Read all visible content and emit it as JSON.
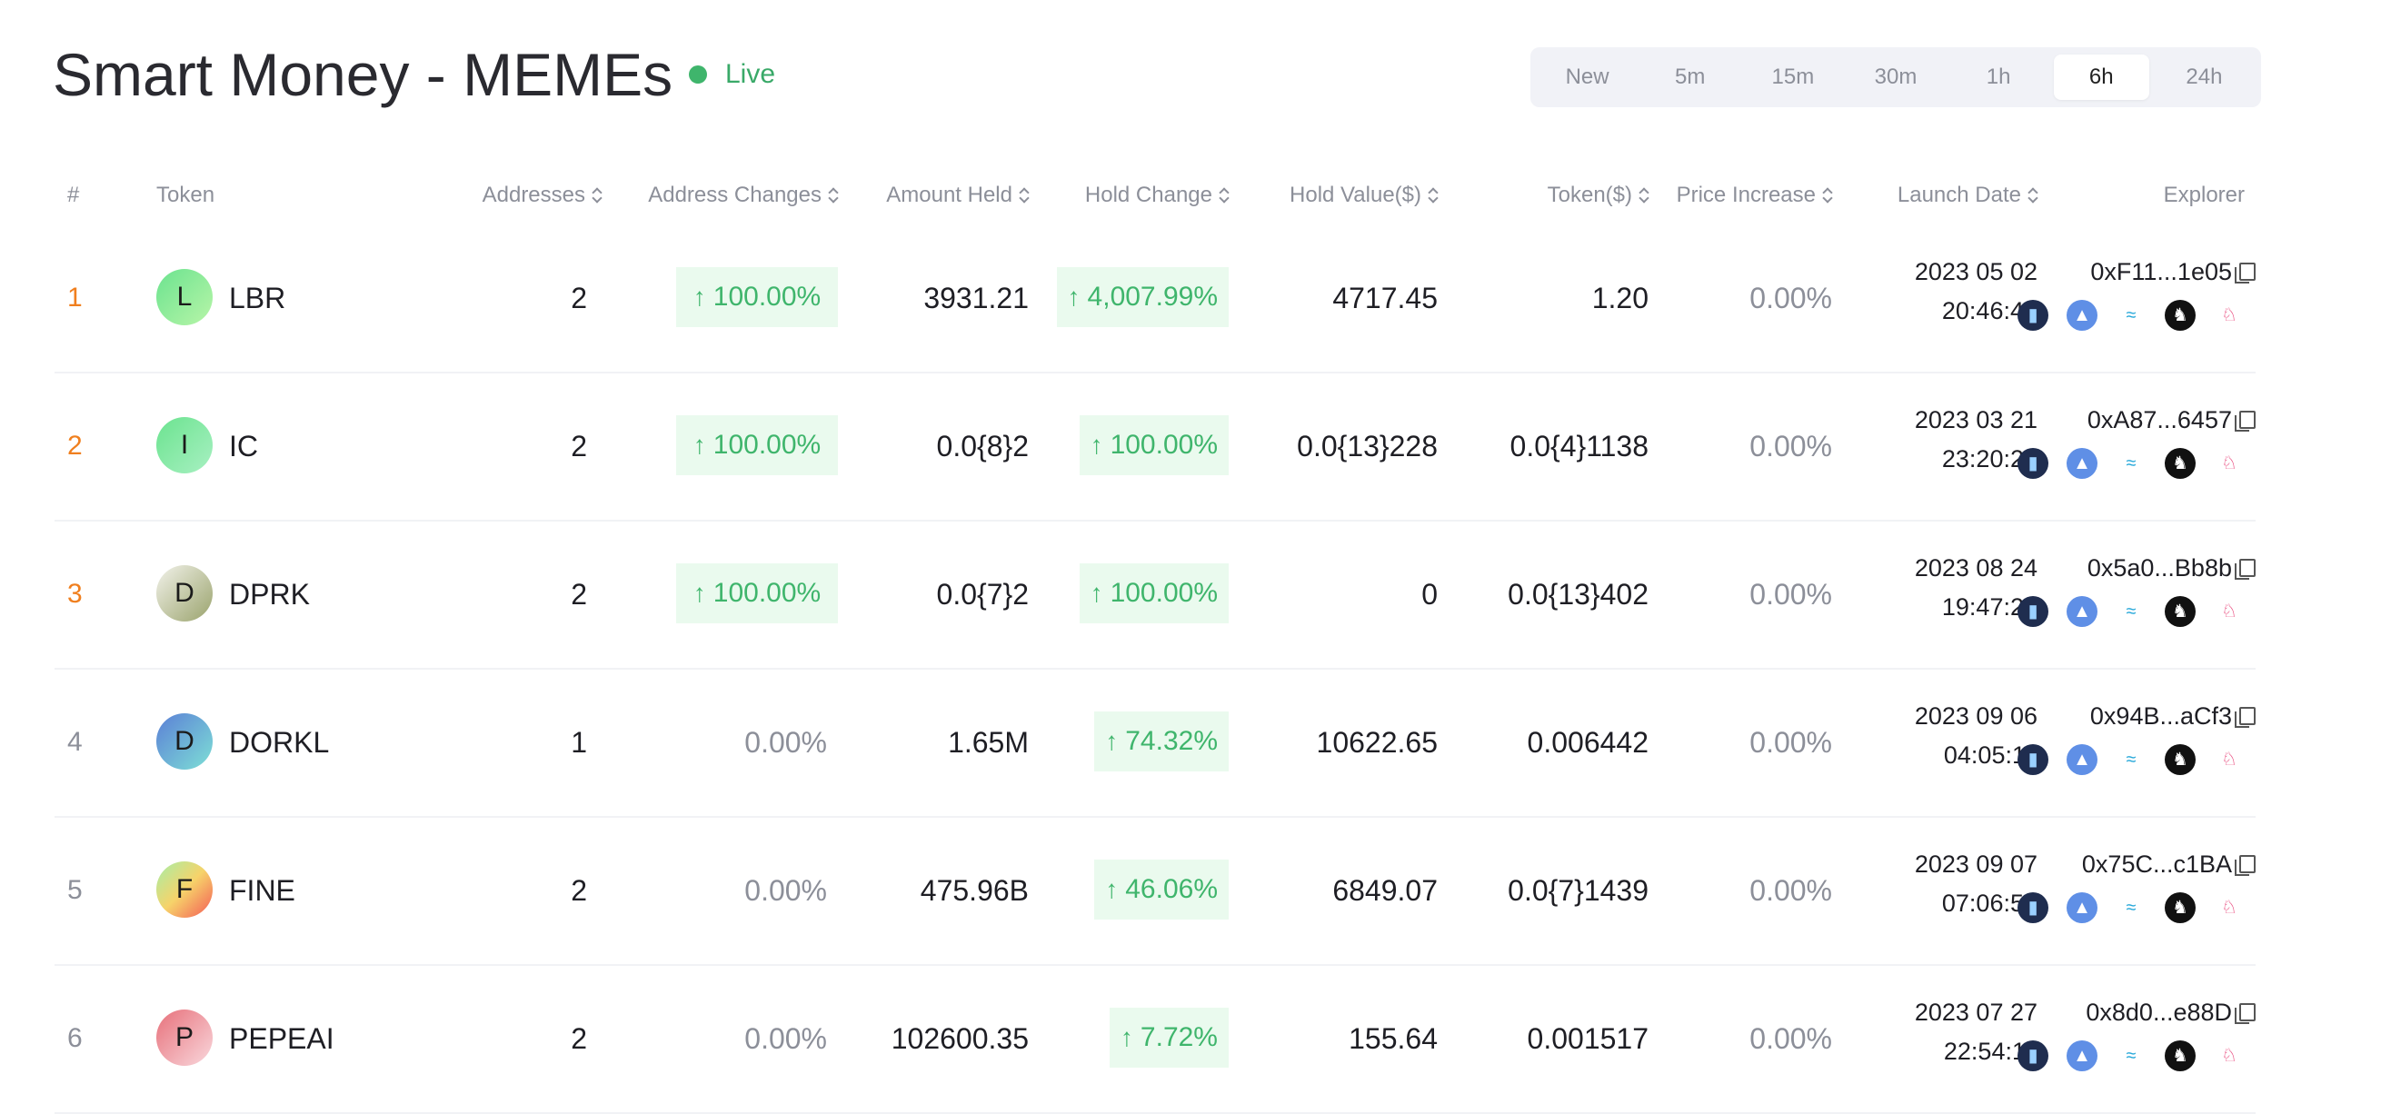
{
  "page_title": "Smart Money - MEMEs",
  "status": "Live",
  "time_ranges": [
    "New",
    "5m",
    "15m",
    "30m",
    "1h",
    "6h",
    "24h"
  ],
  "active_range": "6h",
  "columns": {
    "rank": "#",
    "token": "Token",
    "addresses": "Addresses",
    "address_changes": "Address Changes",
    "amount_held": "Amount Held",
    "hold_change": "Hold Change",
    "hold_value": "Hold Value($)",
    "token_price": "Token($)",
    "price_increase": "Price Increase",
    "launch_date": "Launch Date",
    "explorer": "Explorer"
  },
  "explorer_icons": [
    "chart-explorer-icon",
    "a-triangle-explorer-icon",
    "zigzag-explorer-icon",
    "lion-explorer-icon",
    "unicorn-explorer-icon"
  ],
  "colors": {
    "accent_green": "#3fb56c",
    "rank_top": "#f07f1e",
    "muted": "#8c8f99"
  },
  "rows": [
    {
      "rank": "1",
      "avatar": "L",
      "symbol": "LBR",
      "addresses": "2",
      "address_change": "100.00%",
      "address_change_up": true,
      "amount_held": "3931.21",
      "hold_change": "4,007.99%",
      "hold_change_up": true,
      "hold_value": "4717.45",
      "token_price": "1.20",
      "price_increase": "0.00%",
      "date": "2023 05 02",
      "time": "20:46:47",
      "address": "0xF11...1e05"
    },
    {
      "rank": "2",
      "avatar": "I",
      "symbol": "IC",
      "addresses": "2",
      "address_change": "100.00%",
      "address_change_up": true,
      "amount_held": "0.0{8}2",
      "hold_change": "100.00%",
      "hold_change_up": true,
      "hold_value": "0.0{13}228",
      "token_price": "0.0{4}1138",
      "price_increase": "0.00%",
      "date": "2023 03 21",
      "time": "23:20:23",
      "address": "0xA87...6457"
    },
    {
      "rank": "3",
      "avatar": "D",
      "symbol": "DPRK",
      "addresses": "2",
      "address_change": "100.00%",
      "address_change_up": true,
      "amount_held": "0.0{7}2",
      "hold_change": "100.00%",
      "hold_change_up": true,
      "hold_value": "0",
      "token_price": "0.0{13}402",
      "price_increase": "0.00%",
      "date": "2023 08 24",
      "time": "19:47:23",
      "address": "0x5a0...Bb8b"
    },
    {
      "rank": "4",
      "avatar": "D",
      "symbol": "DORKL",
      "addresses": "1",
      "address_change": "0.00%",
      "address_change_up": false,
      "amount_held": "1.65M",
      "hold_change": "74.32%",
      "hold_change_up": true,
      "hold_value": "10622.65",
      "token_price": "0.006442",
      "price_increase": "0.00%",
      "date": "2023 09 06",
      "time": "04:05:11",
      "address": "0x94B...aCf3"
    },
    {
      "rank": "5",
      "avatar": "F",
      "symbol": "FINE",
      "addresses": "2",
      "address_change": "0.00%",
      "address_change_up": false,
      "amount_held": "475.96B",
      "hold_change": "46.06%",
      "hold_change_up": true,
      "hold_value": "6849.07",
      "token_price": "0.0{7}1439",
      "price_increase": "0.00%",
      "date": "2023 09 07",
      "time": "07:06:59",
      "address": "0x75C...c1BA"
    },
    {
      "rank": "6",
      "avatar": "P",
      "symbol": "PEPEAI",
      "addresses": "2",
      "address_change": "0.00%",
      "address_change_up": false,
      "amount_held": "102600.35",
      "hold_change": "7.72%",
      "hold_change_up": true,
      "hold_value": "155.64",
      "token_price": "0.001517",
      "price_increase": "0.00%",
      "date": "2023 07 27",
      "time": "22:54:11",
      "address": "0x8d0...e88D"
    }
  ]
}
